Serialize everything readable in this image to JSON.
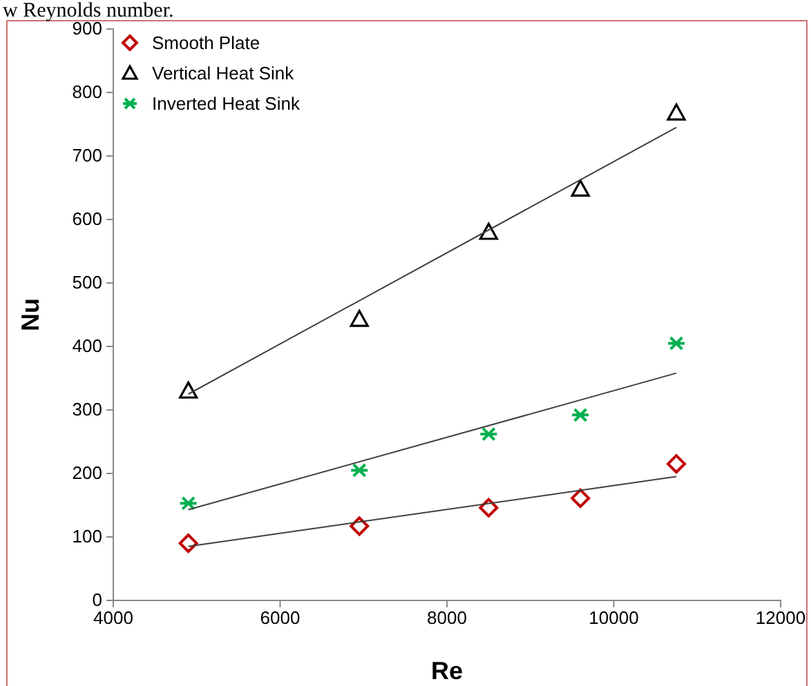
{
  "chart_data": {
    "type": "scatter",
    "xlabel": "Re",
    "ylabel": "Nu",
    "annotations": [
      "w Reynolds number."
    ],
    "xlim": [
      4000,
      12000
    ],
    "xticks": [
      4000,
      6000,
      8000,
      10000,
      12000
    ],
    "ylim": [
      0,
      900
    ],
    "yticks": [
      0,
      100,
      200,
      300,
      400,
      500,
      600,
      700,
      800,
      900
    ],
    "grid": false,
    "legend": "top left",
    "series": [
      {
        "name": "Smooth Plate",
        "color": "#c00000",
        "marker": "diamond",
        "x": [
          4900,
          6950,
          8500,
          9600,
          10750
        ],
        "values": [
          90,
          117,
          146,
          161,
          215
        ]
      },
      {
        "name": "Vertical Heat Sink",
        "color": "#000000",
        "marker": "triangle",
        "x": [
          4900,
          6950,
          8500,
          9600,
          10750
        ],
        "values": [
          330,
          443,
          580,
          648,
          768
        ]
      },
      {
        "name": "Inverted Heat Sink",
        "color": "#00b050",
        "marker": "cross",
        "x": [
          4900,
          6950,
          8500,
          9600,
          10750
        ],
        "values": [
          153,
          205,
          262,
          292,
          405
        ]
      },
      {
        "type": "line",
        "color": "#404040",
        "marker": "none",
        "x": [
          4900,
          10750
        ],
        "values": [
          85,
          195
        ]
      },
      {
        "type": "line",
        "color": "#404040",
        "marker": "none",
        "x": [
          4900,
          10750
        ],
        "values": [
          325,
          745
        ]
      },
      {
        "type": "line",
        "color": "#404040",
        "marker": "none",
        "x": [
          4900,
          10750
        ],
        "values": [
          143,
          358
        ]
      }
    ]
  }
}
